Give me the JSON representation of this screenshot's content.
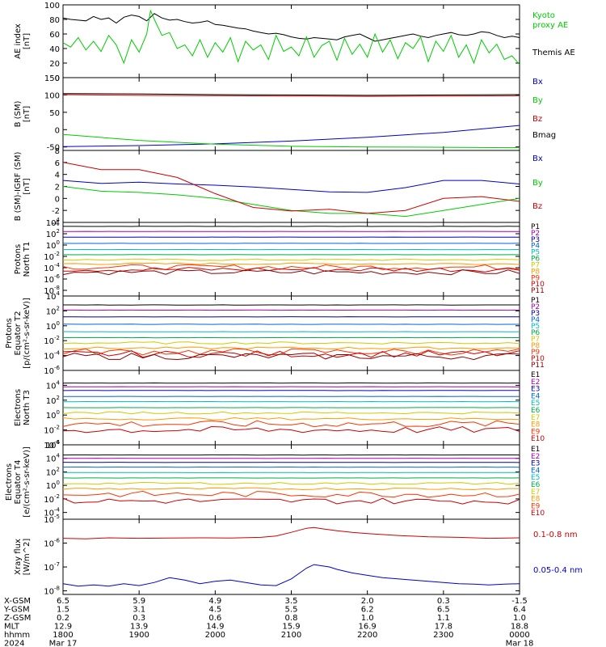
{
  "chart_data": [
    {
      "type": "line",
      "ylabel": [
        "AE index",
        "[nT]"
      ],
      "ylim": [
        0,
        100
      ],
      "yticks": [
        0,
        20,
        40,
        60,
        80,
        100
      ],
      "legend": [
        {
          "label": "Kyoto",
          "color": "#00cc00"
        },
        {
          "label": "proxy AE",
          "color": "#00cc00"
        },
        {
          "label": "Themis AE",
          "color": "#000000"
        }
      ],
      "series": [
        {
          "name": "Themis AE",
          "color": "#000000",
          "x": [
            0,
            0.1,
            0.2,
            0.3,
            0.4,
            0.5,
            0.6,
            0.7,
            0.8,
            0.9,
            1.0,
            1.1,
            1.2,
            1.3,
            1.4,
            1.5,
            1.6,
            1.7,
            1.8,
            1.9,
            2.0,
            2.1,
            2.2,
            2.3,
            2.4,
            2.5,
            2.6,
            2.7,
            2.8,
            2.9,
            3.0,
            3.1,
            3.2,
            3.3,
            3.4,
            3.5,
            3.6,
            3.7,
            3.8,
            3.9,
            4.0,
            4.1,
            4.2,
            4.3,
            4.4,
            4.5,
            4.6,
            4.7,
            4.8,
            4.9,
            5.0,
            5.1,
            5.2,
            5.3,
            5.4,
            5.5,
            5.6,
            5.7,
            5.8,
            5.9,
            6.0
          ],
          "y": [
            82,
            80,
            79,
            78,
            84,
            80,
            82,
            75,
            83,
            86,
            84,
            78,
            88,
            82,
            79,
            80,
            77,
            75,
            76,
            78,
            73,
            72,
            70,
            68,
            67,
            64,
            62,
            60,
            61,
            59,
            56,
            54,
            53,
            55,
            54,
            53,
            52,
            56,
            58,
            60,
            55,
            50,
            52,
            54,
            56,
            58,
            60,
            57,
            55,
            58,
            60,
            62,
            59,
            58,
            60,
            63,
            62,
            58,
            55,
            57,
            55
          ]
        },
        {
          "name": "Kyoto proxy AE",
          "color": "#00cc00",
          "x": [
            0,
            0.1,
            0.2,
            0.3,
            0.4,
            0.5,
            0.6,
            0.7,
            0.8,
            0.9,
            1.0,
            1.1,
            1.15,
            1.2,
            1.3,
            1.4,
            1.5,
            1.6,
            1.7,
            1.8,
            1.9,
            2.0,
            2.1,
            2.2,
            2.3,
            2.4,
            2.5,
            2.6,
            2.7,
            2.8,
            2.9,
            3.0,
            3.1,
            3.2,
            3.3,
            3.4,
            3.5,
            3.6,
            3.7,
            3.8,
            3.9,
            4.0,
            4.1,
            4.2,
            4.3,
            4.4,
            4.5,
            4.6,
            4.7,
            4.8,
            4.9,
            5.0,
            5.1,
            5.2,
            5.3,
            5.4,
            5.5,
            5.6,
            5.7,
            5.8,
            5.9,
            6.0
          ],
          "y": [
            48,
            42,
            55,
            38,
            50,
            36,
            58,
            45,
            20,
            52,
            35,
            60,
            92,
            80,
            58,
            62,
            40,
            45,
            30,
            52,
            28,
            48,
            35,
            55,
            22,
            50,
            38,
            45,
            25,
            58,
            36,
            42,
            30,
            56,
            28,
            44,
            50,
            24,
            54,
            32,
            46,
            28,
            60,
            35,
            52,
            26,
            48,
            40,
            56,
            22,
            50,
            36,
            58,
            28,
            45,
            20,
            52,
            34,
            46,
            25,
            30,
            18
          ]
        }
      ]
    },
    {
      "type": "line",
      "ylabel": [
        "B (SM)",
        "[nT]"
      ],
      "ylim": [
        -60,
        150
      ],
      "yticks": [
        -50,
        0,
        50,
        100,
        150
      ],
      "legend": [
        {
          "label": "Bx",
          "color": "#0000cc"
        },
        {
          "label": "By",
          "color": "#00cc00"
        },
        {
          "label": "Bz",
          "color": "#cc0000"
        },
        {
          "label": "Bmag",
          "color": "#000000"
        }
      ],
      "series": [
        {
          "name": "Bx",
          "color": "#0000cc",
          "x": [
            0,
            1,
            2,
            3,
            4,
            5,
            6
          ],
          "y": [
            -49,
            -46,
            -41,
            -33,
            -22,
            -8,
            12
          ]
        },
        {
          "name": "By",
          "color": "#00cc00",
          "x": [
            0,
            1,
            2,
            3,
            4,
            5,
            6
          ],
          "y": [
            -14,
            -31,
            -42,
            -48,
            -50,
            -51,
            -52
          ]
        },
        {
          "name": "Bz",
          "color": "#cc0000",
          "x": [
            0,
            1,
            2,
            3,
            4,
            5,
            6
          ],
          "y": [
            101,
            99,
            98,
            97,
            96,
            97,
            98
          ]
        },
        {
          "name": "Bmag",
          "color": "#000000",
          "x": [
            0,
            1,
            2,
            3,
            4,
            5,
            6
          ],
          "y": [
            104,
            103,
            101,
            100,
            99,
            100,
            101
          ]
        }
      ]
    },
    {
      "type": "line",
      "ylabel": [
        "B (SM)-IGRF (SM)",
        "[nT]"
      ],
      "ylim": [
        -4,
        8
      ],
      "yticks": [
        -4,
        -2,
        0,
        2,
        4,
        6,
        8
      ],
      "legend": [
        {
          "label": "Bx",
          "color": "#0000cc"
        },
        {
          "label": "By",
          "color": "#00cc00"
        },
        {
          "label": "Bz",
          "color": "#cc0000"
        }
      ],
      "series": [
        {
          "name": "Bx",
          "color": "#0000cc",
          "x": [
            0,
            0.5,
            1,
            1.5,
            2,
            2.5,
            3,
            3.5,
            4,
            4.5,
            5,
            5.5,
            6
          ],
          "y": [
            3.0,
            2.5,
            2.7,
            2.4,
            2.2,
            1.9,
            1.5,
            1.1,
            1.0,
            1.8,
            3.0,
            3.0,
            2.4
          ]
        },
        {
          "name": "By",
          "color": "#00cc00",
          "x": [
            0,
            0.5,
            1,
            1.5,
            2,
            2.5,
            3,
            3.5,
            4,
            4.5,
            5,
            5.5,
            6
          ],
          "y": [
            2.0,
            1.2,
            1.0,
            0.6,
            0.0,
            -1.0,
            -2.0,
            -2.5,
            -2.5,
            -3.0,
            -2.0,
            -1.0,
            0.0
          ]
        },
        {
          "name": "Bz",
          "color": "#cc0000",
          "x": [
            0,
            0.5,
            1,
            1.5,
            2,
            2.5,
            3,
            3.5,
            4,
            4.5,
            5,
            5.5,
            6
          ],
          "y": [
            6.0,
            4.8,
            4.8,
            3.5,
            0.8,
            -1.5,
            -2.1,
            -1.8,
            -2.5,
            -2.0,
            0.0,
            0.3,
            -0.5
          ]
        }
      ]
    },
    {
      "type": "line",
      "ylabel": [
        "Protons",
        "North T1"
      ],
      "log": true,
      "ylim_exp": [
        -9,
        4
      ],
      "yticks_exp": [
        -8,
        -6,
        -4,
        -2,
        0,
        2,
        4
      ],
      "channels": [
        {
          "name": "P1",
          "color": "#000000",
          "y_exp": 3.3
        },
        {
          "name": "P2",
          "color": "#aa00aa",
          "y_exp": 2.4
        },
        {
          "name": "P3",
          "color": "#0000aa",
          "y_exp": 1.4
        },
        {
          "name": "P4",
          "color": "#0066dd",
          "y_exp": 0.3
        },
        {
          "name": "P5",
          "color": "#00bbbb",
          "y_exp": -0.8
        },
        {
          "name": "P6",
          "color": "#00aa44",
          "y_exp": -1.7
        },
        {
          "name": "P7",
          "color": "#cccc00",
          "y_exp": -2.6
        },
        {
          "name": "P8",
          "color": "#ff9900",
          "y_exp": -3.3
        },
        {
          "name": "P9",
          "color": "#ff3300",
          "y_exp": -3.9
        },
        {
          "name": "P10",
          "color": "#cc0000",
          "y_exp": -4.3
        },
        {
          "name": "P11",
          "color": "#880000",
          "y_exp": -4.8
        }
      ]
    },
    {
      "type": "line",
      "ylabel": [
        "Protons",
        "Equator T2",
        "[p/(cm²-s-sr-keV)]"
      ],
      "log": true,
      "ylim_exp": [
        -6,
        4
      ],
      "yticks_exp": [
        -6,
        -4,
        -2,
        0,
        2,
        4
      ],
      "channels": [
        {
          "name": "P1",
          "color": "#000000",
          "y_exp": 2.8
        },
        {
          "name": "P2",
          "color": "#aa00aa",
          "y_exp": 2.1
        },
        {
          "name": "P3",
          "color": "#0000aa",
          "y_exp": 1.2
        },
        {
          "name": "P4",
          "color": "#0066dd",
          "y_exp": 0.2
        },
        {
          "name": "P5",
          "color": "#00bbbb",
          "y_exp": -0.8
        },
        {
          "name": "P6",
          "color": "#00aa44",
          "y_exp": -1.6
        },
        {
          "name": "P7",
          "color": "#cccc00",
          "y_exp": -2.3
        },
        {
          "name": "P8",
          "color": "#ff9900",
          "y_exp": -3.0
        },
        {
          "name": "P9",
          "color": "#ff3300",
          "y_exp": -3.5
        },
        {
          "name": "P10",
          "color": "#cc0000",
          "y_exp": -3.8
        },
        {
          "name": "P11",
          "color": "#880000",
          "y_exp": -4.1
        }
      ]
    },
    {
      "type": "line",
      "ylabel": [
        "Electrons",
        "North T3"
      ],
      "log": true,
      "ylim_exp": [
        -4,
        6
      ],
      "yticks_exp": [
        -4,
        -2,
        0,
        2,
        4
      ],
      "channels": [
        {
          "name": "E1",
          "color": "#000000",
          "y_exp": 4.3
        },
        {
          "name": "E2",
          "color": "#aa00aa",
          "y_exp": 3.8
        },
        {
          "name": "E3",
          "color": "#0000aa",
          "y_exp": 3.3
        },
        {
          "name": "E4",
          "color": "#0066dd",
          "y_exp": 2.5
        },
        {
          "name": "E5",
          "color": "#00bbbb",
          "y_exp": 1.8
        },
        {
          "name": "E6",
          "color": "#00aa44",
          "y_exp": 1.0
        },
        {
          "name": "E7",
          "color": "#cccc00",
          "y_exp": 0.3
        },
        {
          "name": "E8",
          "color": "#ff9900",
          "y_exp": -0.5
        },
        {
          "name": "E9",
          "color": "#ff3300",
          "y_exp": -1.2
        },
        {
          "name": "E10",
          "color": "#cc0000",
          "y_exp": -2.0
        }
      ]
    },
    {
      "type": "line",
      "ylabel": [
        "Electrons",
        "Equator T4",
        "[e/(cm²-s-sr-keV)]"
      ],
      "log": true,
      "ylim_exp": [
        -5,
        6
      ],
      "yticks_exp": [
        -4,
        -2,
        0,
        2,
        4,
        6
      ],
      "channels": [
        {
          "name": "E1",
          "color": "#000000",
          "y_exp": 4.5
        },
        {
          "name": "E2",
          "color": "#aa00aa",
          "y_exp": 4.0
        },
        {
          "name": "E3",
          "color": "#0000aa",
          "y_exp": 3.4
        },
        {
          "name": "E4",
          "color": "#0066dd",
          "y_exp": 2.7
        },
        {
          "name": "E5",
          "color": "#00bbbb",
          "y_exp": 1.9
        },
        {
          "name": "E6",
          "color": "#00aa44",
          "y_exp": 1.1
        },
        {
          "name": "E7",
          "color": "#cccc00",
          "y_exp": 0.3
        },
        {
          "name": "E8",
          "color": "#ff9900",
          "y_exp": -0.5
        },
        {
          "name": "E9",
          "color": "#ff3300",
          "y_exp": -1.3
        },
        {
          "name": "E10",
          "color": "#cc0000",
          "y_exp": -2.3
        }
      ]
    },
    {
      "type": "line",
      "ylabel": [
        "Xray flux",
        "[W/m^2]"
      ],
      "log": true,
      "ylim_exp": [
        -8.15,
        -5
      ],
      "yticks_exp": [
        -8,
        -7,
        -6,
        -5
      ],
      "legend": [
        {
          "label": "0.1-0.8 nm",
          "color": "#cc0000"
        },
        {
          "label": "0.05-0.4 nm",
          "color": "#0000cc"
        }
      ],
      "series": [
        {
          "name": "0.1-0.8 nm",
          "color": "#cc0000",
          "x": [
            0,
            0.3,
            0.6,
            1.0,
            1.4,
            1.8,
            2.2,
            2.6,
            2.8,
            3.0,
            3.2,
            3.3,
            3.4,
            3.6,
            3.8,
            4.0,
            4.4,
            4.8,
            5.2,
            5.6,
            6.0
          ],
          "y_exp": [
            -5.8,
            -5.82,
            -5.78,
            -5.8,
            -5.79,
            -5.78,
            -5.79,
            -5.76,
            -5.7,
            -5.55,
            -5.38,
            -5.35,
            -5.4,
            -5.48,
            -5.55,
            -5.6,
            -5.68,
            -5.74,
            -5.76,
            -5.8,
            -5.78
          ]
        },
        {
          "name": "0.05-0.4 nm",
          "color": "#0000cc",
          "x": [
            0,
            0.2,
            0.4,
            0.6,
            0.8,
            1.0,
            1.2,
            1.4,
            1.6,
            1.8,
            2.0,
            2.2,
            2.4,
            2.6,
            2.8,
            3.0,
            3.2,
            3.3,
            3.4,
            3.5,
            3.6,
            3.8,
            4.0,
            4.2,
            4.4,
            4.6,
            4.8,
            5.0,
            5.2,
            5.4,
            5.6,
            5.8,
            6.0
          ],
          "y_exp": [
            -7.7,
            -7.8,
            -7.75,
            -7.8,
            -7.7,
            -7.78,
            -7.65,
            -7.45,
            -7.55,
            -7.7,
            -7.6,
            -7.55,
            -7.65,
            -7.75,
            -7.78,
            -7.5,
            -7.05,
            -6.9,
            -6.95,
            -7.0,
            -7.1,
            -7.25,
            -7.35,
            -7.45,
            -7.5,
            -7.55,
            -7.6,
            -7.65,
            -7.7,
            -7.72,
            -7.75,
            -7.72,
            -7.7
          ]
        }
      ]
    }
  ],
  "footer": {
    "rows": [
      {
        "label": "X-GSM",
        "values": [
          "6.5",
          "5.9",
          "4.9",
          "3.5",
          "2.0",
          "0.3",
          "-1.5"
        ]
      },
      {
        "label": "Y-GSM",
        "values": [
          "1.5",
          "3.1",
          "4.5",
          "5.5",
          "6.2",
          "6.5",
          "6.4"
        ]
      },
      {
        "label": "Z-GSM",
        "values": [
          "0.2",
          "0.3",
          "0.6",
          "0.8",
          "1.0",
          "1.1",
          "1.0"
        ]
      },
      {
        "label": "MLT",
        "values": [
          "12.9",
          "13.9",
          "14.9",
          "15.9",
          "16.9",
          "17.8",
          "18.8"
        ]
      },
      {
        "label": "hhmm",
        "values": [
          "1800",
          "1900",
          "2000",
          "2100",
          "2200",
          "2300",
          "0000"
        ]
      },
      {
        "label": "2024",
        "values": [
          "Mar 17",
          "",
          "",
          "",
          "",
          "",
          "Mar 18"
        ]
      }
    ]
  }
}
